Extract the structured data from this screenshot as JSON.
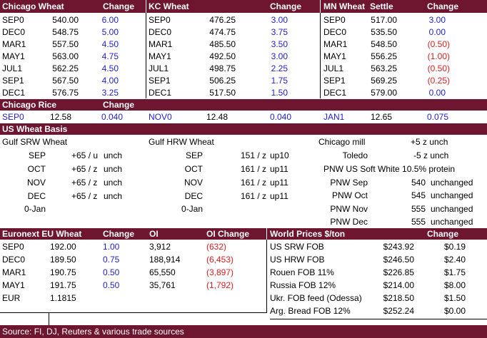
{
  "wheat_futures": {
    "headers": {
      "chicago": "Chicago Wheat",
      "change": "Change",
      "kc": "KC Wheat",
      "mn": "MN Wheat",
      "settle": "Settle"
    },
    "rows": [
      {
        "c_m": "SEP0",
        "c_p": "540.00",
        "c_ch": "6.00",
        "k_m": "SEP0",
        "k_p": "476.25",
        "k_ch": "3.00",
        "m_m": "SEP0",
        "m_p": "517.00",
        "m_ch": "3.00"
      },
      {
        "c_m": "DEC0",
        "c_p": "548.75",
        "c_ch": "5.00",
        "k_m": "DEC0",
        "k_p": "474.75",
        "k_ch": "3.75",
        "m_m": "DEC0",
        "m_p": "535.50",
        "m_ch": "0.00"
      },
      {
        "c_m": "MAR1",
        "c_p": "557.50",
        "c_ch": "4.50",
        "k_m": "MAR1",
        "k_p": "485.50",
        "k_ch": "3.50",
        "m_m": "MAR1",
        "m_p": "548.50",
        "m_ch": "(0.50)"
      },
      {
        "c_m": "MAY1",
        "c_p": "563.00",
        "c_ch": "4.75",
        "k_m": "MAY1",
        "k_p": "492.50",
        "k_ch": "3.00",
        "m_m": "MAY1",
        "m_p": "556.25",
        "m_ch": "(1.00)"
      },
      {
        "c_m": "JUL1",
        "c_p": "562.25",
        "c_ch": "4.50",
        "k_m": "JUL1",
        "k_p": "498.75",
        "k_ch": "2.25",
        "m_m": "JUL1",
        "m_p": "563.25",
        "m_ch": "(0.50)"
      },
      {
        "c_m": "SEP1",
        "c_p": "567.50",
        "c_ch": "4.00",
        "k_m": "SEP1",
        "k_p": "506.25",
        "k_ch": "1.75",
        "m_m": "SEP1",
        "m_p": "569.25",
        "m_ch": "(0.25)"
      },
      {
        "c_m": "DEC1",
        "c_p": "576.75",
        "c_ch": "3.25",
        "k_m": "DEC1",
        "k_p": "517.50",
        "k_ch": "1.50",
        "m_m": "DEC1",
        "m_p": "579.00",
        "m_ch": "0.00"
      }
    ]
  },
  "rice": {
    "title": "Chicago Rice",
    "change": "Change",
    "cells": [
      "SEP0",
      "12.58",
      "0.040",
      "NOV0",
      "12.48",
      "0.040",
      "JAN1",
      "12.65",
      "0.075"
    ]
  },
  "basis": {
    "title": "US Wheat Basis",
    "srw_title": "Gulf SRW Wheat",
    "hrw_title": "Gulf HRW Wheat",
    "srw": [
      {
        "m": "SEP",
        "v": "+65 / u",
        "n": "unch"
      },
      {
        "m": "OCT",
        "v": "+65 / z",
        "n": "unch"
      },
      {
        "m": "NOV",
        "v": "+65 / z",
        "n": "unch"
      },
      {
        "m": "DEC",
        "v": "+65 / z",
        "n": "unch"
      },
      {
        "m": "0-Jan",
        "v": "",
        "n": ""
      }
    ],
    "hrw": [
      {
        "m": "SEP",
        "v": "151 / z",
        "n": "up10"
      },
      {
        "m": "OCT",
        "v": "161 / z",
        "n": "up11"
      },
      {
        "m": "NOV",
        "v": "161 / z",
        "n": "up11"
      },
      {
        "m": "DEC",
        "v": "161 / z",
        "n": "up11"
      },
      {
        "m": "0-Jan",
        "v": "",
        "n": ""
      }
    ],
    "chicago_mill": {
      "label": "Chicago mill",
      "value": "+5 z unch"
    },
    "toledo": {
      "label": "Toledo",
      "value": "-5 z unch"
    },
    "pnw_title": "PNW US Soft White 10.5% protein",
    "pnw": [
      {
        "m": "PNW Sep",
        "v": "540",
        "n": "unchanged"
      },
      {
        "m": "PNW Oct",
        "v": "545",
        "n": "unchanged"
      },
      {
        "m": "PNW Nov",
        "v": "555",
        "n": "unchanged"
      },
      {
        "m": "PNW Dec",
        "v": "555",
        "n": "unchanged"
      }
    ]
  },
  "euronext": {
    "headers": {
      "title": "Euronext EU Wheat",
      "change": "Change",
      "oi": "OI",
      "oi_change": "OI Change"
    },
    "rows": [
      {
        "m": "SEP0",
        "p": "192.00",
        "ch": "1.00",
        "oi": "3,912",
        "oic": "(632)"
      },
      {
        "m": "DEC0",
        "p": "189.50",
        "ch": "0.75",
        "oi": "188,914",
        "oic": "(6,453)"
      },
      {
        "m": "MAR1",
        "p": "190.75",
        "ch": "0.50",
        "oi": "65,550",
        "oic": "(3,897)"
      },
      {
        "m": "MAY1",
        "p": "191.75",
        "ch": "0.50",
        "oi": "35,761",
        "oic": "(1,792)"
      }
    ],
    "eur": {
      "label": "EUR",
      "value": "1.1815"
    }
  },
  "world": {
    "headers": {
      "title": "World Prices $/ton",
      "change": "Change"
    },
    "rows": [
      {
        "n": "US SRW FOB",
        "p": "$243.92",
        "ch": "$0.19"
      },
      {
        "n": "US HRW FOB",
        "p": "$246.50",
        "ch": "$2.40"
      },
      {
        "n": "Rouen FOB 11%",
        "p": "$226.85",
        "ch": "$1.75"
      },
      {
        "n": "Russia FOB 12%",
        "p": "$214.00",
        "ch": "$8.00"
      },
      {
        "n": "Ukr. FOB feed (Odessa)",
        "p": "$218.50",
        "ch": "$1.50"
      },
      {
        "n": "Arg. Bread FOB 12%",
        "p": "$252.24",
        "ch": "$0.00"
      }
    ]
  },
  "source": "Source: FI, DJ, Reuters & various trade sources",
  "colors": {
    "band": "#6e1530",
    "blue": "#1f1fd0",
    "red": "#d81f1f"
  }
}
